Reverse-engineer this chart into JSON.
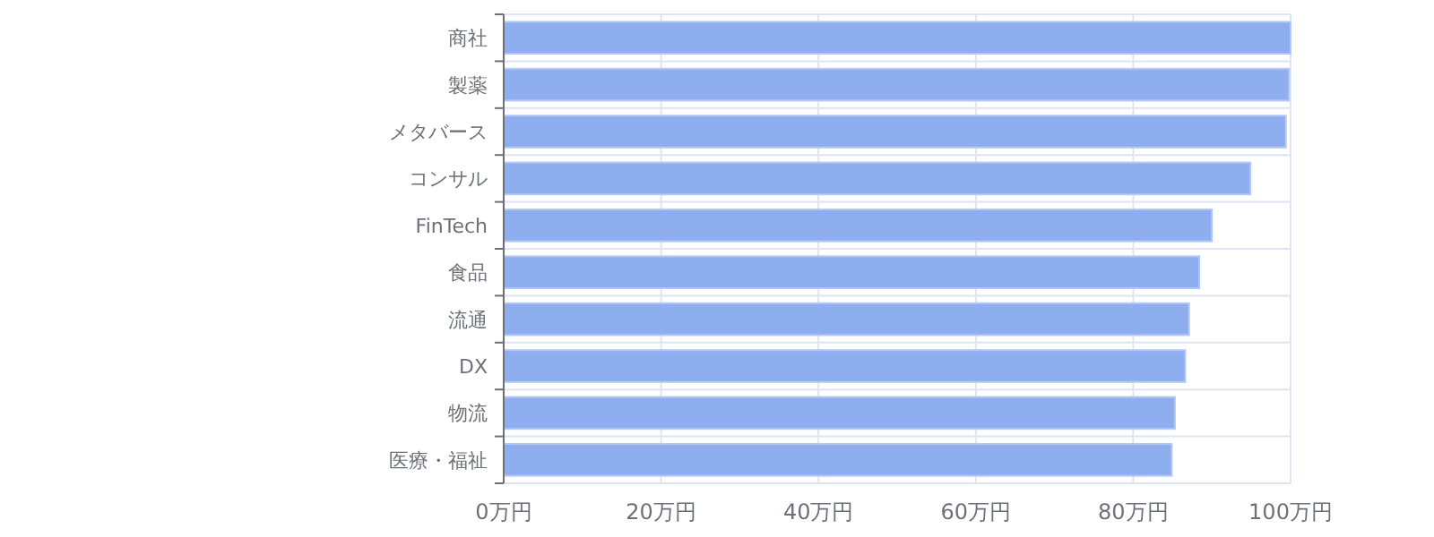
{
  "chart_data": {
    "type": "bar",
    "orientation": "horizontal",
    "categories": [
      "商社",
      "製薬",
      "メタバース",
      "コンサル",
      "FinTech",
      "食品",
      "流通",
      "DX",
      "物流",
      "医療・福祉"
    ],
    "values": [
      100,
      99.8,
      99.4,
      94.9,
      90.0,
      88.4,
      87.1,
      86.6,
      85.3,
      84.9
    ],
    "color": "#8eaef0",
    "xlim": [
      0,
      100
    ],
    "xticks": [
      {
        "value": 0,
        "label": "0万円"
      },
      {
        "value": 20,
        "label": "20万円"
      },
      {
        "value": 40,
        "label": "40万円"
      },
      {
        "value": 60,
        "label": "60万円"
      },
      {
        "value": 80,
        "label": "80万円"
      },
      {
        "value": 100,
        "label": "100万円"
      }
    ],
    "grid": true
  }
}
